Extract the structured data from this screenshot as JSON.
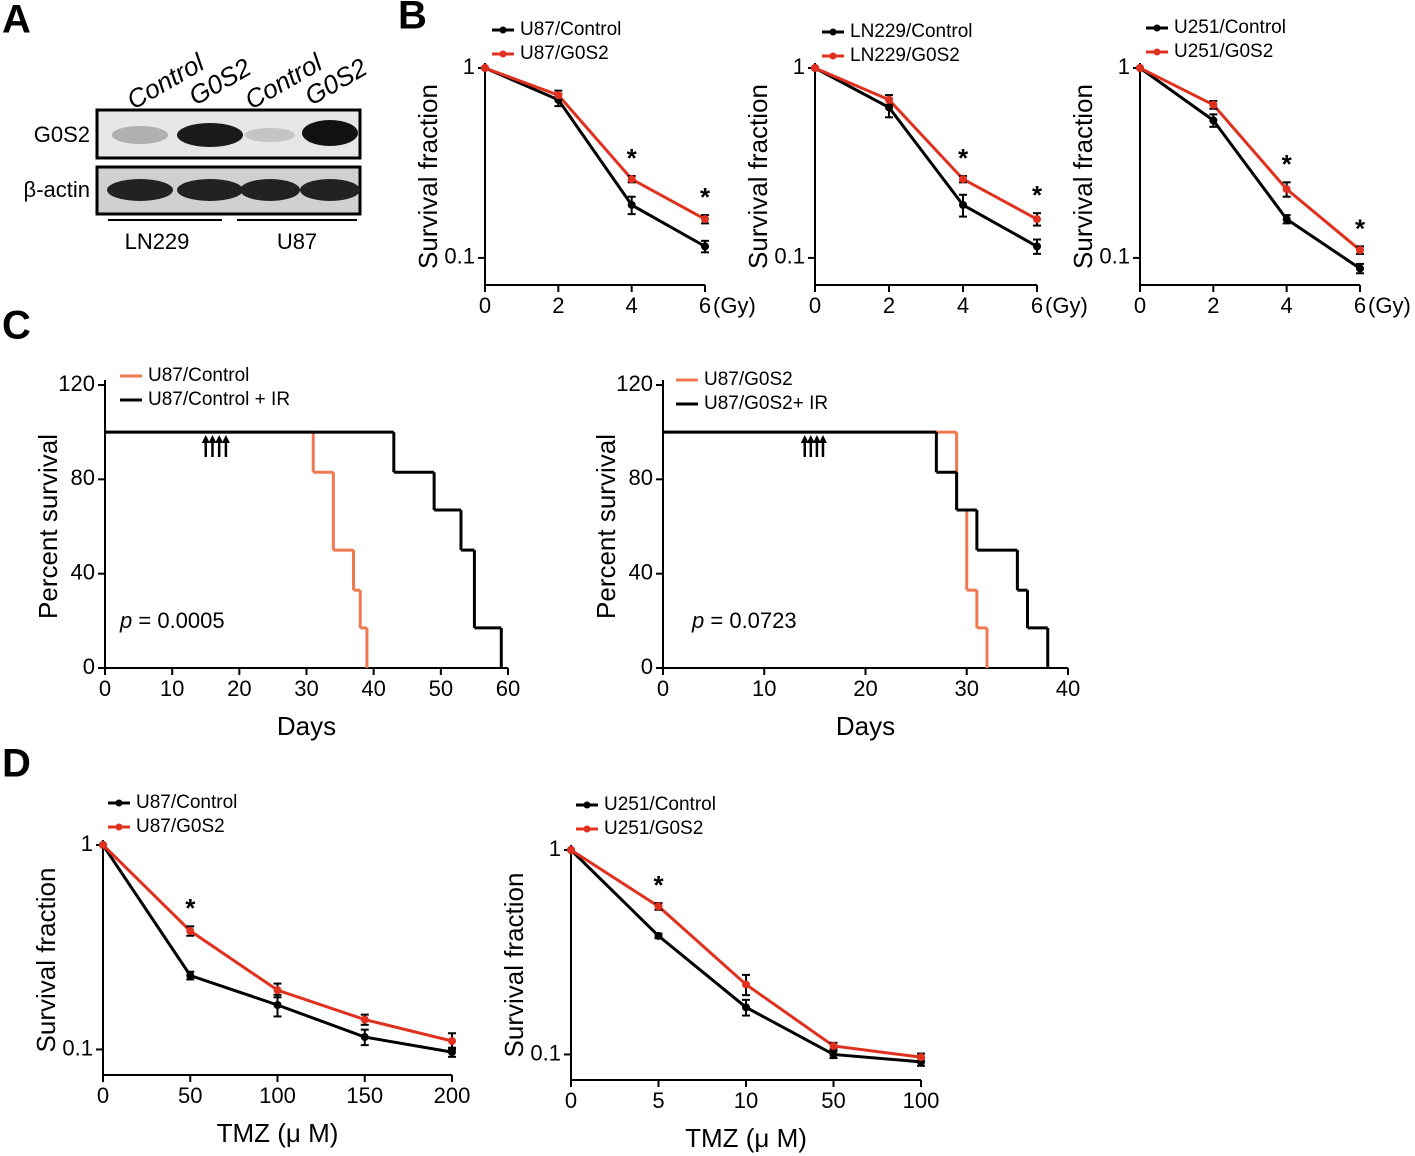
{
  "panel_labels": [
    "A",
    "B",
    "C",
    "D"
  ],
  "blot": {
    "columns": [
      "Control",
      "G0S2",
      "Control",
      "G0S2"
    ],
    "rows": [
      "G0S2",
      "β-actin"
    ],
    "groups": [
      "LN229",
      "U87"
    ]
  },
  "chart_data": [
    {
      "type": "line",
      "log_y": true,
      "y_label": "Survival fraction",
      "x_unit": "(Gy)",
      "x": [
        0,
        2,
        4,
        6
      ],
      "xlim": [
        0,
        6
      ],
      "xticks": [
        0,
        2,
        4,
        6
      ],
      "ylim": [
        0.072,
        1
      ],
      "yticks": [
        0.1,
        1
      ],
      "series": [
        {
          "name": "U87/Control",
          "color": "#000000",
          "values": [
            1,
            0.68,
            0.19,
            0.115
          ],
          "errors": [
            0,
            0.05,
            0.02,
            0.008
          ]
        },
        {
          "name": "U87/G0S2",
          "color": "#e0301e",
          "values": [
            1,
            0.72,
            0.26,
            0.16
          ],
          "errors": [
            0,
            0.04,
            0.01,
            0.008
          ]
        }
      ],
      "annotations": [
        {
          "x": 4,
          "text": "*"
        },
        {
          "x": 6,
          "text": "*"
        }
      ]
    },
    {
      "type": "line",
      "log_y": true,
      "y_label": "Survival fraction",
      "x_unit": "(Gy)",
      "x": [
        0,
        2,
        4,
        6
      ],
      "xlim": [
        0,
        6
      ],
      "xticks": [
        0,
        2,
        4,
        6
      ],
      "ylim": [
        0.072,
        1
      ],
      "yticks": [
        0.1,
        1
      ],
      "series": [
        {
          "name": "LN229/Control",
          "color": "#000000",
          "values": [
            1,
            0.62,
            0.19,
            0.115
          ],
          "errors": [
            0,
            0.07,
            0.025,
            0.01
          ]
        },
        {
          "name": "LN229/G0S2",
          "color": "#e0301e",
          "values": [
            1,
            0.68,
            0.26,
            0.16
          ],
          "errors": [
            0,
            0.04,
            0.01,
            0.012
          ]
        }
      ],
      "annotations": [
        {
          "x": 4,
          "text": "*"
        },
        {
          "x": 6,
          "text": "*"
        }
      ]
    },
    {
      "type": "line",
      "log_y": true,
      "y_label": "Survival fraction",
      "x_unit": "(Gy)",
      "x": [
        0,
        2,
        4,
        6
      ],
      "xlim": [
        0,
        6
      ],
      "xticks": [
        0,
        2,
        4,
        6
      ],
      "ylim": [
        0.072,
        1
      ],
      "yticks": [
        0.1,
        1
      ],
      "series": [
        {
          "name": "U251/Control",
          "color": "#000000",
          "values": [
            1,
            0.53,
            0.16,
            0.088
          ],
          "errors": [
            0,
            0.04,
            0.008,
            0.005
          ]
        },
        {
          "name": "U251/G0S2",
          "color": "#e0301e",
          "values": [
            1,
            0.64,
            0.23,
            0.11
          ],
          "errors": [
            0,
            0.03,
            0.02,
            0.005
          ]
        }
      ],
      "annotations": [
        {
          "x": 4,
          "text": "*"
        },
        {
          "x": 6,
          "text": "*"
        }
      ]
    },
    {
      "type": "step",
      "x_label": "Days",
      "y_label": "Percent survival",
      "xlim": [
        0,
        60
      ],
      "xticks": [
        0,
        10,
        20,
        30,
        40,
        50,
        60
      ],
      "ylim": [
        0,
        120
      ],
      "yticks": [
        0,
        40,
        80,
        120
      ],
      "arrows": [
        15,
        16,
        17,
        18
      ],
      "series": [
        {
          "name": "U87/Control",
          "color": "#f07850",
          "x": [
            0,
            31,
            34,
            37,
            38,
            39
          ],
          "values": [
            100,
            83,
            50,
            33,
            17,
            0
          ]
        },
        {
          "name": "U87/Control + IR",
          "color": "#000000",
          "x": [
            0,
            43,
            49,
            53,
            55,
            59
          ],
          "values": [
            100,
            83,
            67,
            50,
            17,
            0
          ]
        }
      ],
      "annotation": {
        "label": "p",
        "text": "= 0.0005"
      }
    },
    {
      "type": "step",
      "x_label": "Days",
      "y_label": "Percent survival",
      "xlim": [
        0,
        40
      ],
      "xticks": [
        0,
        10,
        20,
        30,
        40
      ],
      "ylim": [
        0,
        120
      ],
      "yticks": [
        0,
        40,
        80,
        120
      ],
      "arrows": [
        14,
        14.6,
        15.2,
        15.8
      ],
      "series": [
        {
          "name": "U87/G0S2",
          "color": "#f07850",
          "x": [
            0,
            29,
            30,
            31,
            32
          ],
          "values": [
            100,
            67,
            33,
            17,
            0
          ]
        },
        {
          "name": "U87/G0S2+ IR",
          "color": "#000000",
          "x": [
            0,
            27,
            29,
            31,
            35,
            36,
            38
          ],
          "values": [
            100,
            83,
            67,
            50,
            33,
            17,
            0
          ]
        }
      ],
      "annotation": {
        "label": "p",
        "text": "= 0.0723"
      }
    },
    {
      "type": "line",
      "log_y": true,
      "y_label": "Survival fraction",
      "x_label": "TMZ (μ M)",
      "x": [
        0,
        50,
        100,
        150,
        200
      ],
      "xlim": [
        0,
        200
      ],
      "xticks": [
        0,
        50,
        100,
        150,
        200
      ],
      "ylim": [
        0.075,
        1
      ],
      "yticks": [
        0.1,
        1
      ],
      "series": [
        {
          "name": "U87/Control",
          "color": "#000000",
          "values": [
            1,
            0.23,
            0.165,
            0.115,
            0.097
          ],
          "errors": [
            0,
            0.01,
            0.02,
            0.01,
            0.005
          ]
        },
        {
          "name": "U87/G0S2",
          "color": "#e0301e",
          "values": [
            1,
            0.38,
            0.195,
            0.14,
            0.11
          ],
          "errors": [
            0,
            0.02,
            0.015,
            0.008,
            0.01
          ]
        }
      ],
      "annotations": [
        {
          "x": 50,
          "text": "*"
        }
      ]
    },
    {
      "type": "line",
      "log_y": true,
      "y_label": "Survival fraction",
      "x_label": "TMZ (μ M)",
      "categories": [
        "0",
        "5",
        "10",
        "50",
        "100"
      ],
      "ylim": [
        0.075,
        1
      ],
      "yticks": [
        0.1,
        1
      ],
      "series": [
        {
          "name": "U251/Control",
          "color": "#000000",
          "values": [
            1,
            0.38,
            0.17,
            0.1,
            0.092
          ],
          "errors": [
            0,
            0.01,
            0.015,
            0.004,
            0.004
          ]
        },
        {
          "name": "U251/G0S2",
          "color": "#e0301e",
          "values": [
            1,
            0.53,
            0.22,
            0.11,
            0.097
          ],
          "errors": [
            0,
            0.02,
            0.025,
            0.004,
            0.004
          ]
        }
      ],
      "annotations": [
        {
          "x": "5",
          "text": "*"
        }
      ]
    }
  ]
}
